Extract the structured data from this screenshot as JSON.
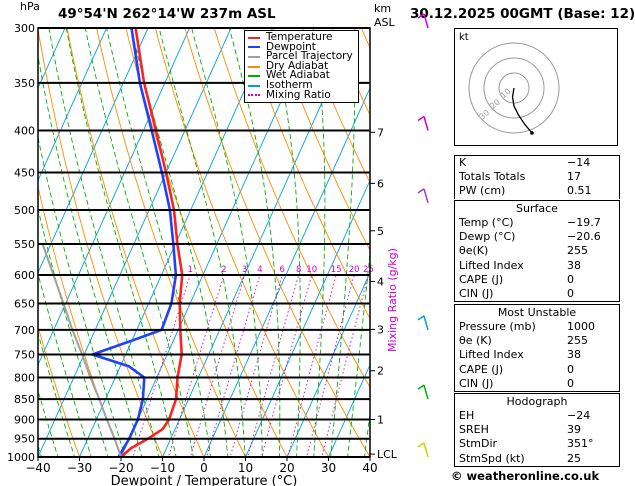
{
  "header": {
    "hpa_label": "hPa",
    "location": "49°54'N  262°14'W  237m  ASL",
    "km_label": "km",
    "asl_label": "ASL",
    "run": "30.12.2025  00GMT  (Base: 12)"
  },
  "chart_data": {
    "type": "skew-t",
    "title": "49°54'N 262°14'W 237m ASL",
    "xlabel": "Dewpoint / Temperature (°C)",
    "ylabel": "hPa",
    "mixing_ratio_label": "Mixing Ratio (g/kg)",
    "xlim": [
      -40,
      40
    ],
    "ylim": [
      1000,
      300
    ],
    "x_ticks": [
      "−40",
      "−30",
      "−20",
      "−10",
      "0",
      "10",
      "20",
      "30",
      "40"
    ],
    "pressure_levels": [
      300,
      350,
      400,
      450,
      500,
      550,
      600,
      650,
      700,
      750,
      800,
      850,
      900,
      950,
      1000
    ],
    "km_ticks": [
      {
        "label": "7",
        "p": 402
      },
      {
        "label": "6",
        "p": 464
      },
      {
        "label": "5",
        "p": 530
      },
      {
        "label": "4",
        "p": 611
      },
      {
        "label": "3",
        "p": 699
      },
      {
        "label": "2",
        "p": 785
      },
      {
        "label": "1",
        "p": 900
      },
      {
        "label": "LCL",
        "p": 992
      }
    ],
    "mixing_ratio_values": [
      "1",
      "2",
      "3",
      "4",
      "6",
      "8",
      "10",
      "15",
      "20",
      "25"
    ],
    "series": [
      {
        "name": "Temperature",
        "color": "#ff2020",
        "points": [
          {
            "p": 1000,
            "t": -20.0
          },
          {
            "p": 975,
            "t": -18.5
          },
          {
            "p": 950,
            "t": -15.5
          },
          {
            "p": 925,
            "t": -13.0
          },
          {
            "p": 900,
            "t": -12.5
          },
          {
            "p": 850,
            "t": -13.0
          },
          {
            "p": 800,
            "t": -15.0
          },
          {
            "p": 750,
            "t": -16.5
          },
          {
            "p": 700,
            "t": -19.5
          },
          {
            "p": 650,
            "t": -22.5
          },
          {
            "p": 600,
            "t": -25.0
          },
          {
            "p": 550,
            "t": -29.5
          },
          {
            "p": 500,
            "t": -34.0
          },
          {
            "p": 450,
            "t": -40.0
          },
          {
            "p": 400,
            "t": -47.0
          },
          {
            "p": 350,
            "t": -55.0
          },
          {
            "p": 300,
            "t": -63.0
          }
        ]
      },
      {
        "name": "Dewpoint",
        "color": "#2040ff",
        "points": [
          {
            "p": 1000,
            "t": -20.6
          },
          {
            "p": 950,
            "t": -20.0
          },
          {
            "p": 900,
            "t": -20.0
          },
          {
            "p": 850,
            "t": -21.0
          },
          {
            "p": 800,
            "t": -23.0
          },
          {
            "p": 775,
            "t": -28.0
          },
          {
            "p": 750,
            "t": -38.0
          },
          {
            "p": 725,
            "t": -31.0
          },
          {
            "p": 700,
            "t": -24.0
          },
          {
            "p": 650,
            "t": -24.5
          },
          {
            "p": 600,
            "t": -26.5
          },
          {
            "p": 550,
            "t": -30.5
          },
          {
            "p": 500,
            "t": -35.0
          },
          {
            "p": 450,
            "t": -41.0
          },
          {
            "p": 400,
            "t": -48.0
          },
          {
            "p": 350,
            "t": -56.0
          },
          {
            "p": 300,
            "t": -64.0
          }
        ]
      },
      {
        "name": "Parcel Trajectory",
        "color": "#a0a0a0",
        "points": [
          {
            "p": 1000,
            "t": -20.0
          },
          {
            "p": 950,
            "t": -23.5
          },
          {
            "p": 900,
            "t": -27.5
          },
          {
            "p": 850,
            "t": -31.5
          },
          {
            "p": 800,
            "t": -36.0
          },
          {
            "p": 750,
            "t": -40.5
          },
          {
            "p": 700,
            "t": -45.5
          },
          {
            "p": 650,
            "t": -50.5
          },
          {
            "p": 600,
            "t": -56.0
          },
          {
            "p": 550,
            "t": -62.0
          }
        ]
      }
    ],
    "legend": [
      {
        "label": "Temperature",
        "color": "#ff2020",
        "style": "solid"
      },
      {
        "label": "Dewpoint",
        "color": "#2040ff",
        "style": "solid"
      },
      {
        "label": "Parcel Trajectory",
        "color": "#a0a0a0",
        "style": "solid"
      },
      {
        "label": "Dry Adiabat",
        "color": "#ff8c00",
        "style": "solid"
      },
      {
        "label": "Wet Adiabat",
        "color": "#00b000",
        "style": "solid"
      },
      {
        "label": "Isotherm",
        "color": "#00a0e0",
        "style": "solid"
      },
      {
        "label": "Mixing Ratio",
        "color": "#d000d0",
        "style": "dotted"
      }
    ],
    "wind_barbs_p": [
      300,
      400,
      490,
      700,
      850,
      1000
    ],
    "hodograph": {
      "label": "kt",
      "ring_labels": [
        "10",
        "20",
        "30"
      ],
      "points": [
        [
          0,
          0
        ],
        [
          -1,
          -6
        ],
        [
          0,
          -12
        ],
        [
          3,
          -18
        ],
        [
          7,
          -24
        ],
        [
          12,
          -30
        ]
      ]
    }
  },
  "indices": [
    {
      "k": "K",
      "v": "−14"
    },
    {
      "k": "Totals Totals",
      "v": "17"
    },
    {
      "k": "PW (cm)",
      "v": "0.51"
    }
  ],
  "surface": {
    "title": "Surface",
    "rows": [
      {
        "k": "Temp (°C)",
        "v": "−19.7"
      },
      {
        "k": "Dewp (°C)",
        "v": "−20.6"
      },
      {
        "k": "θe(K)",
        "v": "255"
      },
      {
        "k": "Lifted Index",
        "v": "38"
      },
      {
        "k": "CAPE (J)",
        "v": "0"
      },
      {
        "k": "CIN (J)",
        "v": "0"
      }
    ]
  },
  "unstable": {
    "title": "Most Unstable",
    "rows": [
      {
        "k": "Pressure (mb)",
        "v": "1000"
      },
      {
        "k": "θe (K)",
        "v": "255"
      },
      {
        "k": "Lifted Index",
        "v": "38"
      },
      {
        "k": "CAPE (J)",
        "v": "0"
      },
      {
        "k": "CIN (J)",
        "v": "0"
      }
    ]
  },
  "hodograph_table": {
    "title": "Hodograph",
    "rows": [
      {
        "k": "EH",
        "v": "−24"
      },
      {
        "k": "SREH",
        "v": "39"
      },
      {
        "k": "StmDir",
        "v": "351°"
      },
      {
        "k": "StmSpd (kt)",
        "v": "25"
      }
    ]
  },
  "copyright": "© weatheronline.co.uk"
}
